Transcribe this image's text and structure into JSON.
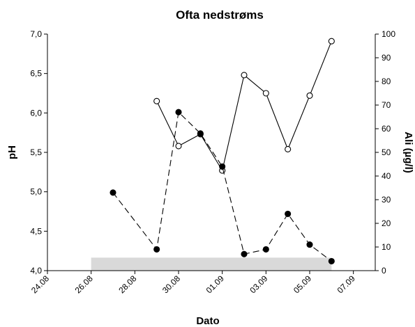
{
  "chart_data": {
    "type": "line",
    "title": "Ofta nedstrøms",
    "xlabel": "Dato",
    "ylabel_left": "pH",
    "ylabel_right": "Ali (µg/l)",
    "x_ticks": [
      "24.08",
      "26.08",
      "28.08",
      "30.08",
      "01.09",
      "03.09",
      "05.09",
      "07.09"
    ],
    "y_left_ticks": [
      "4,0",
      "4,5",
      "5,0",
      "5,5",
      "6,0",
      "6,5",
      "7,0"
    ],
    "y_right_ticks": [
      "0",
      "10",
      "20",
      "30",
      "40",
      "50",
      "60",
      "70",
      "80",
      "90",
      "100"
    ],
    "y_left_range": [
      4.0,
      7.0
    ],
    "y_right_range": [
      0,
      100
    ],
    "x_range": [
      "24.08",
      "08.09"
    ],
    "series": [
      {
        "axis": "left",
        "marker": "open-circle",
        "line_style": "solid",
        "x": [
          "29.08",
          "30.08",
          "31.08",
          "01.09",
          "02.09",
          "03.09",
          "04.09",
          "05.09",
          "06.09"
        ],
        "values": [
          6.15,
          5.58,
          5.73,
          5.27,
          6.48,
          6.25,
          5.54,
          6.22,
          6.91
        ]
      },
      {
        "axis": "right",
        "marker": "filled-circle",
        "line_style": "dashed",
        "x": [
          "27.08",
          "29.08",
          "30.08",
          "31.08",
          "01.09",
          "02.09",
          "03.09",
          "04.09",
          "05.09",
          "06.09"
        ],
        "values": [
          33,
          9,
          67,
          58,
          44,
          7,
          9,
          24,
          11,
          4
        ]
      }
    ],
    "shaded_band": {
      "x": [
        "26.08",
        "06.09"
      ],
      "y_right": [
        0,
        5.5
      ],
      "color": "#d9d9d9"
    },
    "colors": {
      "line": "#000000",
      "open_marker_fill": "#ffffff",
      "filled_marker": "#000000"
    },
    "grid": false
  }
}
